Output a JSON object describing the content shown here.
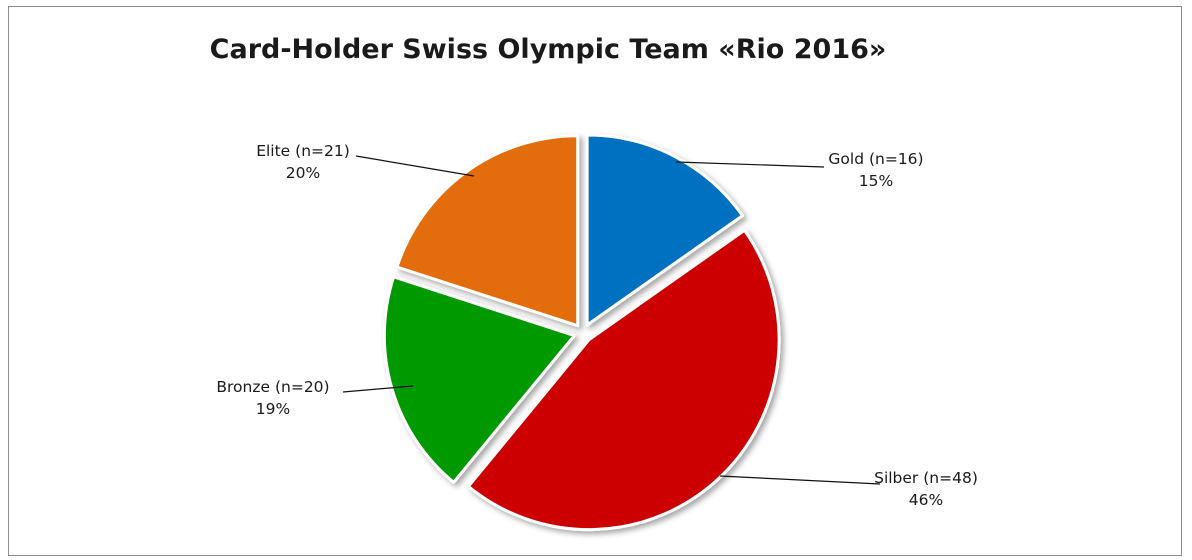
{
  "chart_data": {
    "type": "pie",
    "title": "Card-Holder Swiss Olympic Team «Rio 2016»",
    "slices": [
      {
        "name": "Gold (n=16)",
        "label": "Gold",
        "value": 16,
        "percent_label": "15%",
        "color": "#0070c0",
        "exploded": true
      },
      {
        "name": "Silber (n=48)",
        "label": "Silber",
        "value": 48,
        "percent_label": "46%",
        "color": "#cc0000",
        "exploded": true
      },
      {
        "name": "Bronze (n=20)",
        "label": "Bronze",
        "value": 20,
        "percent_label": "19%",
        "color": "#009900",
        "exploded": true
      },
      {
        "name": "Elite (n=21)",
        "label": "Elite",
        "value": 21,
        "percent_label": "20%",
        "color": "#e36c09",
        "exploded": true
      }
    ],
    "start_angle": "12 o'clock",
    "direction": "clockwise",
    "legend": "none",
    "data_labels": "outside with leader lines"
  }
}
